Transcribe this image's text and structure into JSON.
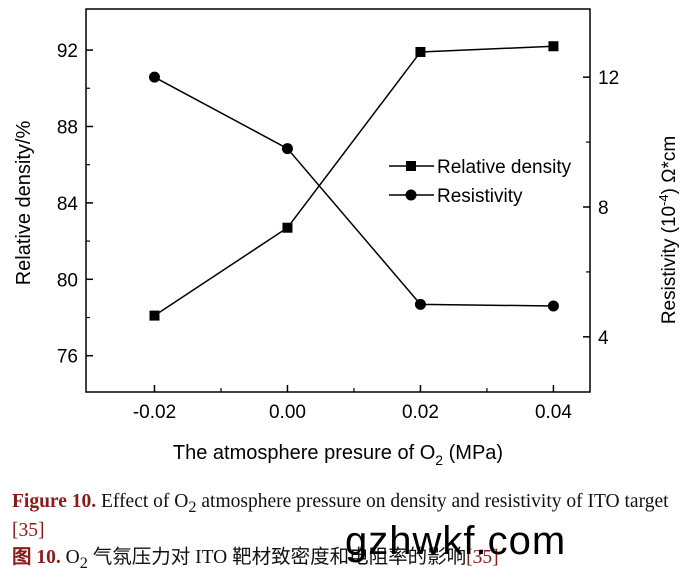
{
  "chart_data": {
    "type": "line",
    "xlabel": "The atmosphere presure of O",
    "xlabel_sub": "2",
    "xlabel_unit": "(MPa)",
    "ylabel_left": "Relative density/%",
    "ylabel_right": "Resistivity (10",
    "ylabel_right_sup": "-4",
    "ylabel_right_unit": ") Ω*cm",
    "x_ticks": [
      "-0.02",
      "0.00",
      "0.02",
      "0.04"
    ],
    "x_tick_values": [
      -0.02,
      0.0,
      0.02,
      0.04
    ],
    "xlim": [
      -0.0303,
      0.0455
    ],
    "y_left_ticks": [
      "76",
      "80",
      "84",
      "88",
      "92"
    ],
    "y_left_tick_values": [
      76,
      80,
      84,
      88,
      92
    ],
    "y_left_lim": [
      74.1,
      94.15
    ],
    "y_right_ticks": [
      "4",
      "8",
      "12"
    ],
    "y_right_tick_values": [
      4,
      8,
      12
    ],
    "y_right_lim": [
      2.3,
      14.1
    ],
    "grid": false,
    "legend_position": "center-right",
    "series": [
      {
        "name": "Relative density",
        "marker": "square",
        "axis": "left",
        "x": [
          -0.02,
          0.0,
          0.02,
          0.04
        ],
        "values": [
          78.1,
          82.7,
          91.9,
          92.2
        ]
      },
      {
        "name": "Resistivity",
        "marker": "circle",
        "axis": "right",
        "x": [
          -0.02,
          0.0,
          0.02,
          0.04
        ],
        "values": [
          12.0,
          9.8,
          5.0,
          4.95
        ]
      }
    ]
  },
  "caption_en": {
    "label": "Figure 10.",
    "text_a": " Effect of O",
    "sub": "2",
    "text_b": " atmosphere pressure on density and resistivity of ITO target ",
    "ref": "[35]"
  },
  "caption_zh": {
    "label": "图 10.",
    "text_a": " O",
    "sub": "2",
    "text_b": " 气氛压力对 ITO 靶材致密度和电阻率的影响",
    "ref": "[35]"
  },
  "watermark": "gzhwkf.com"
}
